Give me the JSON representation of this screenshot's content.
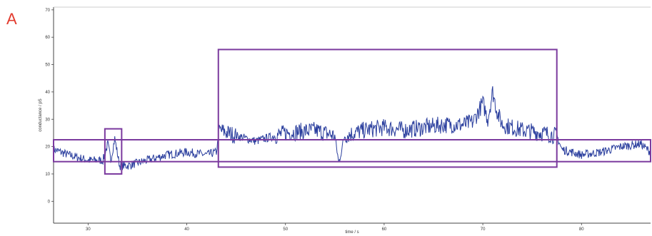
{
  "panel_label": "A",
  "colors": {
    "trace": "#2b3f9e",
    "box": "#7b3a9e",
    "panel_label": "#e23b2e",
    "axis": "#444444"
  },
  "chart_data": {
    "type": "line",
    "title": "",
    "xlabel": "time / s",
    "ylabel": "conductance / pS",
    "xlim": [
      26.5,
      87
    ],
    "ylim": [
      -8,
      71
    ],
    "x_ticks": [
      30,
      40,
      50,
      60,
      70,
      80
    ],
    "y_ticks": [
      0,
      10,
      20,
      30,
      40,
      50,
      60,
      70
    ],
    "grid": false,
    "series": [
      {
        "x": [
          26.5,
          28,
          30,
          31.5,
          32,
          32.3,
          32.7,
          33.2,
          34,
          36,
          38,
          40,
          42,
          43,
          43.3,
          45,
          47,
          50,
          53,
          55,
          55.4,
          56,
          58,
          60,
          62,
          64,
          66,
          68,
          69,
          70,
          70.5,
          71,
          71.5,
          72,
          74,
          76,
          77.5,
          78,
          80,
          82,
          84,
          86,
          87
        ],
        "y": [
          19,
          17,
          15,
          15,
          21,
          15,
          23,
          13,
          13,
          15,
          17,
          18,
          17,
          18,
          26,
          24,
          22,
          25,
          26,
          24,
          14,
          24,
          26,
          27,
          26,
          27,
          28,
          28,
          29,
          36,
          30,
          40,
          32,
          28,
          26,
          25,
          24,
          19,
          17,
          18,
          20,
          21,
          18
        ]
      }
    ],
    "annotation_boxes": [
      {
        "x_range": [
          26.5,
          87
        ],
        "y_range": [
          14.5,
          22.5
        ]
      },
      {
        "x_range": [
          31.7,
          33.4
        ],
        "y_range": [
          10,
          26.5
        ]
      },
      {
        "x_range": [
          43.2,
          77.5
        ],
        "y_range": [
          12.5,
          55.5
        ]
      }
    ]
  }
}
